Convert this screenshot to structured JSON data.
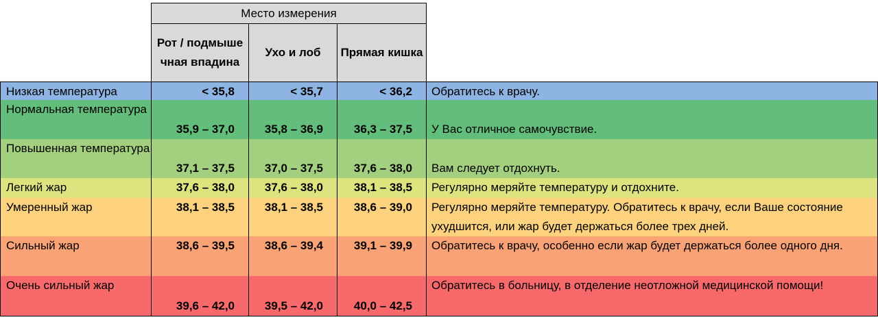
{
  "header": {
    "group_title": "Место измерения",
    "columns": [
      "Рот / подмышечная впадина",
      "Ухо и лоб",
      "Прямая кишка"
    ]
  },
  "rows": [
    {
      "label": "Низкая температура",
      "mouth": "< 35,8",
      "ear": "< 35,7",
      "rectal": "< 36,2",
      "advice": "Обратитесь к врачу.",
      "color": "#8db4e2"
    },
    {
      "label": "Нормальная температура",
      "mouth": "35,9 – 37,0",
      "ear": "35,8 – 36,9",
      "rectal": "36,3 – 37,5",
      "advice": "У Вас отличное самочувствие.",
      "color": "#63be7b"
    },
    {
      "label": "Повышенная температура",
      "mouth": "37,1 – 37,5",
      "ear": "37,0 – 37,5",
      "rectal": "37,6 – 38,0",
      "advice": "Вам следует отдохнуть.",
      "color": "#a3d07f"
    },
    {
      "label": "Легкий жар",
      "mouth": "37,6 – 38,0",
      "ear": "37,6 – 38,0",
      "rectal": "38,1 – 38,5",
      "advice": "Регулярно меряйте температуру и отдохните.",
      "color": "#dde37f"
    },
    {
      "label": "Умеренный жар",
      "mouth": "38,1 – 38,5",
      "ear": "38,1 – 38,5",
      "rectal": "38,6 – 39,0",
      "advice": "Регулярно меряйте температуру. Обратитесь к врачу, если Ваше состояние ухудшится, или жар будет держаться более трех дней.",
      "color": "#fcd27f"
    },
    {
      "label": "Сильный жар",
      "mouth": "38,6 – 39,5",
      "ear": "38,6 – 39,4",
      "rectal": "39,1 – 39,9",
      "advice": "Обратитесь к врачу, особенно если жар будет держаться более одного дня.",
      "color": "#f9a275"
    },
    {
      "label": "Очень сильный жар",
      "mouth": "39,6 – 42,0",
      "ear": "39,5 – 42,0",
      "rectal": "40,0 – 42,5",
      "advice": "Обратитесь в больницу, в отделение неотложной медицинской помощи!",
      "color": "#f8696b"
    }
  ]
}
